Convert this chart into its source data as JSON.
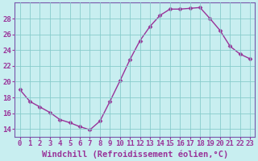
{
  "x": [
    0,
    1,
    2,
    3,
    4,
    5,
    6,
    7,
    8,
    9,
    10,
    11,
    12,
    13,
    14,
    15,
    16,
    17,
    18,
    19,
    20,
    21,
    22,
    23
  ],
  "y": [
    19.0,
    17.5,
    16.8,
    16.1,
    15.2,
    14.8,
    14.3,
    13.9,
    15.0,
    17.5,
    20.1,
    22.8,
    25.2,
    27.0,
    28.4,
    29.2,
    29.2,
    29.3,
    29.4,
    28.0,
    26.5,
    24.5,
    23.5,
    22.9
  ],
  "line_color": "#993399",
  "marker": "D",
  "marker_size": 2.5,
  "background_color": "#c8eef0",
  "plot_bg_color": "#c8eef0",
  "grid_color": "#88cccc",
  "xlabel": "Windchill (Refroidissement éolien,°C)",
  "xlim": [
    -0.5,
    23.5
  ],
  "ylim": [
    13.0,
    30.0
  ],
  "yticks": [
    14,
    16,
    18,
    20,
    22,
    24,
    26,
    28
  ],
  "xticks": [
    0,
    1,
    2,
    3,
    4,
    5,
    6,
    7,
    8,
    9,
    10,
    11,
    12,
    13,
    14,
    15,
    16,
    17,
    18,
    19,
    20,
    21,
    22,
    23
  ],
  "tick_color": "#993399",
  "label_color": "#993399",
  "spine_color": "#7755aa",
  "xlabel_fontsize": 7.5,
  "tick_fontsize": 6.5,
  "line_width": 1.0
}
